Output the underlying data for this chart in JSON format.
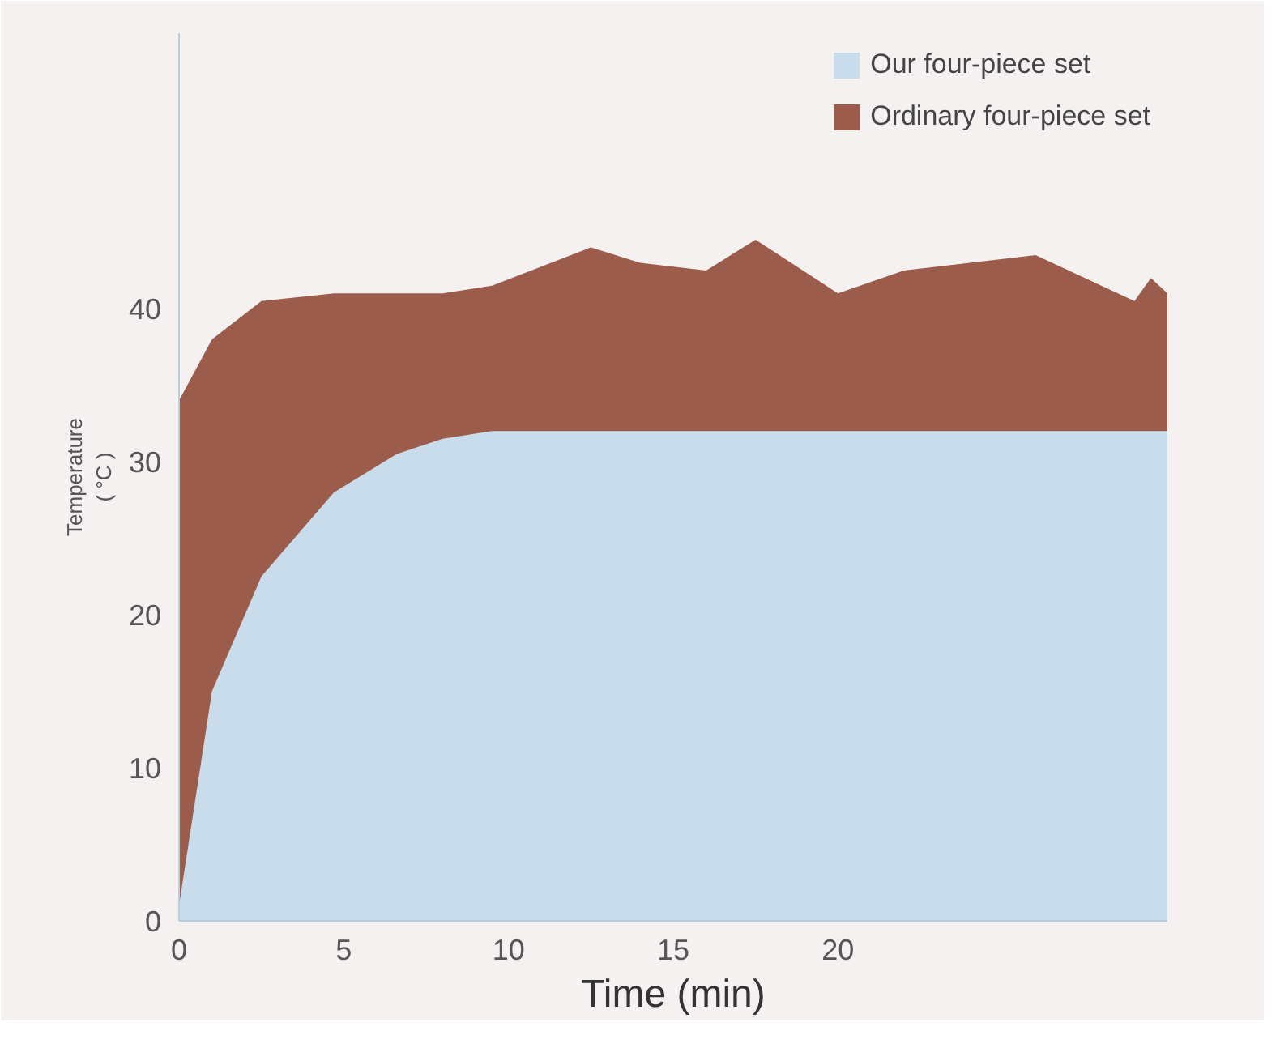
{
  "chart_data": {
    "type": "area",
    "xlabel": "Time (min)",
    "ylabel": "Temperature\n( °C )",
    "x": [
      0,
      1,
      2.5,
      4.7,
      6.6,
      8,
      9.5,
      12.5,
      14,
      16,
      17.5,
      20,
      22,
      24,
      26,
      29,
      29.5,
      30
    ],
    "series": [
      {
        "name": "Our four-piece set",
        "color": "#c9dceb",
        "values": [
          1,
          15,
          22.5,
          28,
          30.5,
          31.5,
          32,
          32,
          32,
          32,
          32,
          32,
          32,
          32,
          32,
          32,
          32,
          32
        ]
      },
      {
        "name": "Ordinary four-piece set",
        "color": "#9b5c4c",
        "values": [
          34,
          38,
          40.5,
          41,
          41,
          41,
          41.5,
          44,
          43,
          42.5,
          44.5,
          41,
          42.5,
          43,
          43.5,
          40.5,
          42,
          41
        ]
      }
    ],
    "xlim": [
      0,
      30
    ],
    "ylim": [
      0,
      58
    ],
    "xticks": [
      0,
      5,
      10,
      15,
      20
    ],
    "yticks": [
      0,
      10,
      20,
      30,
      40
    ],
    "grid": false,
    "legend": "top right"
  }
}
